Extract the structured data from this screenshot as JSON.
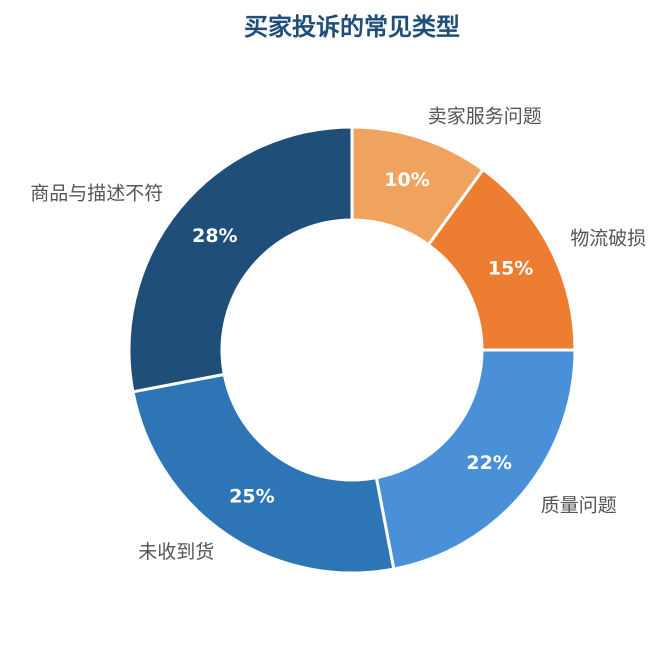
{
  "chart_data": {
    "type": "donut",
    "title": "买家投诉的常见类型",
    "categories": [
      "卖家服务问题",
      "物流破损",
      "质量问题",
      "未收到货",
      "商品与描述不符"
    ],
    "values": [
      10,
      15,
      22,
      25,
      28
    ],
    "value_labels": [
      "10%",
      "15%",
      "22%",
      "25%",
      "28%"
    ],
    "colors": [
      "#f0a35e",
      "#ed7d31",
      "#4a90d9",
      "#2e75b6",
      "#1f4e79"
    ]
  }
}
